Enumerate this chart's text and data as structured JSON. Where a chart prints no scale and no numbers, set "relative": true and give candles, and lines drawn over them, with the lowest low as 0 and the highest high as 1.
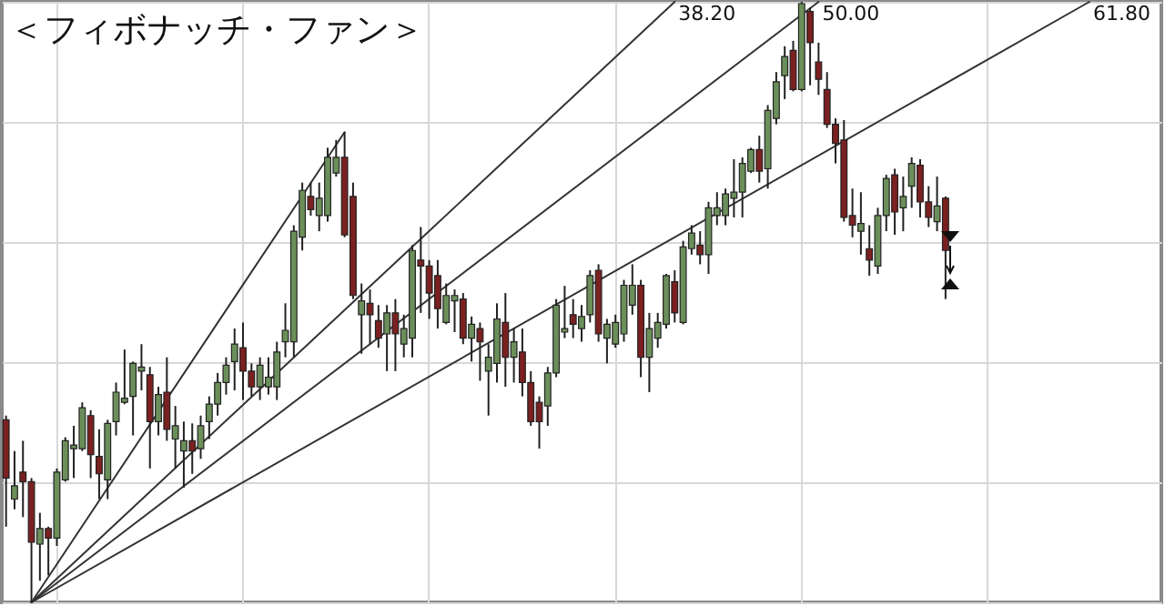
{
  "chart_data": {
    "type": "candlestick",
    "title": "＜フィボナッチ・ファン＞",
    "relative": true,
    "grid": true,
    "categories": [
      null,
      null,
      null,
      null,
      null,
      null,
      null,
      null,
      null,
      null,
      null,
      null,
      null,
      null,
      null,
      null,
      null,
      null,
      null,
      null,
      null,
      null,
      null,
      null,
      null,
      null,
      null,
      null,
      null,
      null,
      null,
      null,
      null,
      null,
      null,
      null,
      null,
      null,
      null,
      null,
      null,
      null,
      null,
      null,
      null,
      null,
      null,
      null,
      null,
      null,
      null,
      null,
      null,
      null,
      null,
      null,
      null,
      null,
      null,
      null,
      null,
      null,
      null,
      null,
      null,
      null,
      null,
      null,
      null,
      null,
      null,
      null,
      null,
      null,
      null,
      null,
      null,
      null,
      null,
      null,
      null,
      null,
      null,
      null,
      null,
      null,
      null,
      null,
      null,
      null,
      null,
      null,
      null,
      null,
      null,
      null,
      null,
      null,
      null,
      null,
      null,
      null,
      null,
      null,
      null,
      null,
      null,
      null,
      null,
      null,
      null,
      null,
      null,
      null,
      null,
      null,
      null,
      null,
      null,
      null,
      null,
      null,
      null,
      null,
      null,
      null,
      null,
      null,
      null,
      null,
      null,
      null,
      null,
      null,
      null,
      null,
      null
    ],
    "ohlc": [
      [
        0.304,
        0.311,
        0.126,
        0.207
      ],
      [
        0.172,
        0.252,
        0.155,
        0.194
      ],
      [
        0.217,
        0.269,
        0.142,
        0.201
      ],
      [
        0.201,
        0.207,
        0,
        0.1
      ],
      [
        0.097,
        0.149,
        0.036,
        0.123
      ],
      [
        0.123,
        0.126,
        0.045,
        0.107
      ],
      [
        0.107,
        0.223,
        0.094,
        0.217
      ],
      [
        0.204,
        0.275,
        0.201,
        0.269
      ],
      [
        0.256,
        0.294,
        0.207,
        0.262
      ],
      [
        0.256,
        0.333,
        0.252,
        0.324
      ],
      [
        0.311,
        0.32,
        0.207,
        0.246
      ],
      [
        0.243,
        0.288,
        0.172,
        0.214
      ],
      [
        0.204,
        0.304,
        0.172,
        0.298
      ],
      [
        0.301,
        0.366,
        0.278,
        0.35
      ],
      [
        0.333,
        0.421,
        0.33,
        0.34
      ],
      [
        0.343,
        0.401,
        0.278,
        0.398
      ],
      [
        0.385,
        0.43,
        0.353,
        0.392
      ],
      [
        0.379,
        0.392,
        0.223,
        0.301
      ],
      [
        0.301,
        0.359,
        0.278,
        0.346
      ],
      [
        0.35,
        0.408,
        0.269,
        0.288
      ],
      [
        0.272,
        0.327,
        0.223,
        0.294
      ],
      [
        0.252,
        0.301,
        0.191,
        0.269
      ],
      [
        0.269,
        0.298,
        0.214,
        0.252
      ],
      [
        0.256,
        0.311,
        0.239,
        0.294
      ],
      [
        0.301,
        0.343,
        0.272,
        0.33
      ],
      [
        0.33,
        0.382,
        0.311,
        0.366
      ],
      [
        0.366,
        0.408,
        0.346,
        0.395
      ],
      [
        0.401,
        0.456,
        0.353,
        0.43
      ],
      [
        0.424,
        0.466,
        0.337,
        0.385
      ],
      [
        0.385,
        0.398,
        0.343,
        0.359
      ],
      [
        0.359,
        0.408,
        0.337,
        0.395
      ],
      [
        0.359,
        0.408,
        0.346,
        0.375
      ],
      [
        0.359,
        0.434,
        0.337,
        0.417
      ],
      [
        0.434,
        0.498,
        0.408,
        0.453
      ],
      [
        0.434,
        0.628,
        0.408,
        0.618
      ],
      [
        0.608,
        0.699,
        0.586,
        0.686
      ],
      [
        0.676,
        0.699,
        0.644,
        0.654
      ],
      [
        0.644,
        0.699,
        0.618,
        0.673
      ],
      [
        0.644,
        0.757,
        0.634,
        0.741
      ],
      [
        0.715,
        0.77,
        0.709,
        0.741
      ],
      [
        0.741,
        0.783,
        0.608,
        0.612
      ],
      [
        0.676,
        0.699,
        0.505,
        0.511
      ],
      [
        0.479,
        0.531,
        0.414,
        0.502
      ],
      [
        0.498,
        0.521,
        0.43,
        0.479
      ],
      [
        0.469,
        0.495,
        0.424,
        0.44
      ],
      [
        0.447,
        0.495,
        0.385,
        0.482
      ],
      [
        0.482,
        0.505,
        0.385,
        0.447
      ],
      [
        0.43,
        0.479,
        0.408,
        0.456
      ],
      [
        0.44,
        0.595,
        0.408,
        0.586
      ],
      [
        0.57,
        0.625,
        0.482,
        0.56
      ],
      [
        0.56,
        0.57,
        0.472,
        0.515
      ],
      [
        0.544,
        0.57,
        0.456,
        0.489
      ],
      [
        0.466,
        0.531,
        0.463,
        0.511
      ],
      [
        0.502,
        0.521,
        0.45,
        0.511
      ],
      [
        0.505,
        0.515,
        0.43,
        0.44
      ],
      [
        0.44,
        0.476,
        0.401,
        0.463
      ],
      [
        0.456,
        0.466,
        0.369,
        0.434
      ],
      [
        0.385,
        0.43,
        0.311,
        0.408
      ],
      [
        0.398,
        0.498,
        0.366,
        0.472
      ],
      [
        0.466,
        0.515,
        0.359,
        0.408
      ],
      [
        0.408,
        0.456,
        0.366,
        0.434
      ],
      [
        0.417,
        0.456,
        0.343,
        0.366
      ],
      [
        0.366,
        0.385,
        0.294,
        0.301
      ],
      [
        0.333,
        0.343,
        0.256,
        0.301
      ],
      [
        0.327,
        0.392,
        0.294,
        0.382
      ],
      [
        0.382,
        0.505,
        0.375,
        0.495
      ],
      [
        0.45,
        0.527,
        0.44,
        0.456
      ],
      [
        0.479,
        0.505,
        0.44,
        0.463
      ],
      [
        0.456,
        0.495,
        0.434,
        0.476
      ],
      [
        0.479,
        0.553,
        0.466,
        0.544
      ],
      [
        0.553,
        0.563,
        0.434,
        0.447
      ],
      [
        0.44,
        0.472,
        0.398,
        0.463
      ],
      [
        0.43,
        0.479,
        0.424,
        0.466
      ],
      [
        0.447,
        0.537,
        0.434,
        0.528
      ],
      [
        0.495,
        0.563,
        0.479,
        0.528
      ],
      [
        0.528,
        0.537,
        0.375,
        0.408
      ],
      [
        0.408,
        0.482,
        0.35,
        0.456
      ],
      [
        0.44,
        0.482,
        0.424,
        0.466
      ],
      [
        0.463,
        0.547,
        0.456,
        0.544
      ],
      [
        0.534,
        0.553,
        0.466,
        0.482
      ],
      [
        0.466,
        0.602,
        0.463,
        0.592
      ],
      [
        0.589,
        0.628,
        0.579,
        0.615
      ],
      [
        0.595,
        0.618,
        0.563,
        0.579
      ],
      [
        0.579,
        0.667,
        0.547,
        0.657
      ],
      [
        0.644,
        0.683,
        0.628,
        0.657
      ],
      [
        0.644,
        0.689,
        0.628,
        0.68
      ],
      [
        0.673,
        0.738,
        0.641,
        0.683
      ],
      [
        0.683,
        0.741,
        0.641,
        0.731
      ],
      [
        0.718,
        0.757,
        0.715,
        0.754
      ],
      [
        0.754,
        0.777,
        0.699,
        0.718
      ],
      [
        0.722,
        0.828,
        0.689,
        0.819
      ],
      [
        0.806,
        0.883,
        0.796,
        0.867
      ],
      [
        0.877,
        0.926,
        0.838,
        0.909
      ],
      [
        0.919,
        0.935,
        0.851,
        0.854
      ],
      [
        0.854,
        1,
        0.851,
        0.997
      ],
      [
        0.984,
        0.99,
        0.861,
        0.932
      ],
      [
        0.9,
        0.932,
        0.845,
        0.871
      ],
      [
        0.854,
        0.883,
        0.79,
        0.796
      ],
      [
        0.796,
        0.806,
        0.731,
        0.764
      ],
      [
        0.77,
        0.803,
        0.634,
        0.641
      ],
      [
        0.644,
        0.689,
        0.608,
        0.628
      ],
      [
        0.618,
        0.683,
        0.579,
        0.631
      ],
      [
        0.589,
        0.628,
        0.544,
        0.57
      ],
      [
        0.56,
        0.657,
        0.547,
        0.644
      ],
      [
        0.644,
        0.712,
        0.618,
        0.706
      ],
      [
        0.712,
        0.722,
        0.612,
        0.65
      ],
      [
        0.657,
        0.709,
        0.618,
        0.676
      ],
      [
        0.693,
        0.741,
        0.657,
        0.731
      ],
      [
        0.728,
        0.738,
        0.641,
        0.667
      ],
      [
        0.667,
        0.693,
        0.625,
        0.641
      ],
      [
        0.634,
        0.709,
        0.618,
        0.66
      ],
      [
        0.673,
        0.676,
        0.505,
        0.586
      ],
      null,
      null,
      null,
      null,
      null,
      null,
      null,
      null,
      null,
      null,
      null,
      null,
      null,
      null,
      null,
      null,
      null,
      null,
      null,
      null,
      null,
      null,
      null,
      null,
      null
    ],
    "colors": [
      "#7b2020",
      "#6b8f5a",
      "#7b2020",
      "#7b2020",
      "#6b8f5a",
      "#7b2020",
      "#6b8f5a",
      "#6b8f5a",
      "#6b8f5a",
      "#6b8f5a",
      "#7b2020",
      "#7b2020",
      "#6b8f5a",
      "#6b8f5a",
      "#6b8f5a",
      "#6b8f5a",
      "#6b8f5a",
      "#7b2020",
      "#6b8f5a",
      "#7b2020",
      "#6b8f5a",
      "#6b8f5a",
      "#7b2020",
      "#6b8f5a",
      "#6b8f5a",
      "#6b8f5a",
      "#6b8f5a",
      "#6b8f5a",
      "#7b2020",
      "#7b2020",
      "#6b8f5a",
      "#6b8f5a",
      "#6b8f5a",
      "#6b8f5a",
      "#6b8f5a",
      "#6b8f5a",
      "#7b2020",
      "#6b8f5a",
      "#6b8f5a",
      "#6b8f5a",
      "#7b2020",
      "#7b2020",
      "#6b8f5a",
      "#7b2020",
      "#7b2020",
      "#6b8f5a",
      "#7b2020",
      "#6b8f5a",
      "#6b8f5a",
      "#7b2020",
      "#7b2020",
      "#7b2020",
      "#6b8f5a",
      "#6b8f5a",
      "#7b2020",
      "#6b8f5a",
      "#7b2020",
      "#6b8f5a",
      "#6b8f5a",
      "#7b2020",
      "#6b8f5a",
      "#7b2020",
      "#7b2020",
      "#7b2020",
      "#6b8f5a",
      "#6b8f5a",
      "#6b8f5a",
      "#7b2020",
      "#6b8f5a",
      "#6b8f5a",
      "#7b2020",
      "#6b8f5a",
      "#6b8f5a",
      "#6b8f5a",
      "#6b8f5a",
      "#7b2020",
      "#6b8f5a",
      "#6b8f5a",
      "#6b8f5a",
      "#7b2020",
      "#6b8f5a",
      "#6b8f5a",
      "#7b2020",
      "#6b8f5a",
      "#6b8f5a",
      "#6b8f5a",
      "#6b8f5a",
      "#6b8f5a",
      "#6b8f5a",
      "#7b2020",
      "#6b8f5a",
      "#6b8f5a",
      "#6b8f5a",
      "#7b2020",
      "#6b8f5a",
      "#7b2020",
      "#7b2020",
      "#7b2020",
      "#7b2020",
      "#7b2020",
      "#7b2020",
      "#6b8f5a",
      "#7b2020",
      "#6b8f5a",
      "#6b8f5a",
      "#7b2020",
      "#6b8f5a",
      "#6b8f5a",
      "#7b2020",
      "#7b2020",
      "#6b8f5a",
      "#7b2020",
      null,
      null,
      null,
      null,
      null,
      null,
      null,
      null,
      null,
      null,
      null,
      null,
      null,
      null,
      null,
      null,
      null,
      null,
      null,
      null,
      null,
      null,
      null,
      null,
      null
    ],
    "series": [
      {
        "type": "line",
        "color": "#333333",
        "values": [
          null,
          null,
          null,
          0,
          null,
          null,
          null,
          null,
          null,
          null,
          null,
          null,
          null,
          null,
          null,
          null,
          null,
          null,
          null,
          null,
          null,
          null,
          null,
          null,
          null,
          null,
          null,
          null,
          null,
          null,
          null,
          null,
          null,
          null,
          null,
          null,
          null,
          null,
          null,
          null,
          0.783,
          null,
          null,
          null,
          null,
          null,
          null,
          null,
          null,
          null,
          null,
          null,
          null,
          null,
          null,
          null,
          null,
          null,
          null,
          null,
          null,
          null,
          null,
          null,
          null,
          null,
          null,
          null,
          null,
          null,
          null,
          null,
          null,
          null,
          null,
          null,
          null,
          null,
          null,
          null,
          null,
          null,
          null,
          null,
          null,
          null,
          null,
          null,
          null,
          null,
          null,
          null,
          null,
          null,
          null,
          null,
          null,
          null,
          null,
          null,
          null,
          null,
          null,
          null,
          null,
          null,
          null,
          null,
          null,
          null,
          null,
          null,
          null,
          null,
          null,
          null,
          null,
          null,
          null,
          null,
          null,
          null,
          null,
          null,
          null,
          null,
          null,
          null,
          null,
          null,
          null,
          null,
          null,
          null,
          null,
          null,
          null
        ]
      },
      {
        "type": "line",
        "name": "38.20",
        "color": "#333333",
        "values": [
          null,
          null,
          null,
          0,
          null,
          null,
          null,
          null,
          null,
          null,
          null,
          null,
          null,
          null,
          null,
          null,
          null,
          null,
          null,
          null,
          null,
          null,
          null,
          null,
          null,
          null,
          null,
          null,
          null,
          null,
          null,
          null,
          null,
          null,
          null,
          null,
          null,
          null,
          null,
          null,
          null,
          null,
          null,
          null,
          null,
          null,
          null,
          null,
          null,
          null,
          null,
          null,
          null,
          null,
          null,
          null,
          null,
          null,
          null,
          null,
          null,
          null,
          null,
          null,
          null,
          null,
          null,
          null,
          null,
          null,
          null,
          null,
          null,
          null,
          null,
          null,
          null,
          null,
          null,
          1,
          null,
          null,
          null,
          null,
          null,
          null,
          null,
          null,
          null,
          null,
          null,
          null,
          null,
          null,
          null,
          null,
          null,
          null,
          null,
          null,
          null,
          null,
          null,
          null,
          null,
          null,
          null,
          null,
          null,
          null,
          null,
          null,
          null,
          null,
          null,
          null,
          null,
          null,
          null,
          null,
          null,
          null,
          null,
          null,
          null,
          null,
          null,
          null,
          null,
          null,
          null,
          null,
          null,
          null,
          null,
          null,
          null
        ]
      },
      {
        "type": "line",
        "name": "50.00",
        "color": "#333333",
        "values": [
          null,
          null,
          null,
          0,
          null,
          null,
          null,
          null,
          null,
          null,
          null,
          null,
          null,
          null,
          null,
          null,
          null,
          null,
          null,
          null,
          null,
          null,
          null,
          null,
          null,
          null,
          null,
          null,
          null,
          null,
          null,
          null,
          null,
          null,
          null,
          null,
          null,
          null,
          null,
          null,
          null,
          null,
          null,
          null,
          null,
          null,
          null,
          null,
          null,
          null,
          null,
          null,
          null,
          null,
          null,
          null,
          null,
          null,
          null,
          null,
          null,
          null,
          null,
          null,
          null,
          null,
          null,
          null,
          null,
          null,
          null,
          null,
          null,
          null,
          null,
          null,
          null,
          null,
          null,
          null,
          null,
          null,
          null,
          null,
          null,
          null,
          null,
          null,
          null,
          null,
          null,
          null,
          null,
          null,
          null,
          null,
          1,
          null,
          null,
          null,
          null,
          null,
          null,
          null,
          null,
          null,
          null,
          null,
          null,
          null,
          null,
          null,
          null,
          null,
          null,
          null,
          null,
          null,
          null,
          null,
          null,
          null,
          null,
          null,
          null,
          null,
          null,
          null,
          null,
          null,
          null,
          null,
          null,
          null,
          null,
          null,
          null
        ]
      },
      {
        "type": "line",
        "name": "61.80",
        "color": "#333333",
        "values": [
          null,
          null,
          null,
          0,
          null,
          null,
          null,
          null,
          null,
          null,
          null,
          null,
          null,
          null,
          null,
          null,
          null,
          null,
          null,
          null,
          null,
          null,
          null,
          null,
          null,
          null,
          null,
          null,
          null,
          null,
          null,
          null,
          null,
          null,
          null,
          null,
          null,
          null,
          null,
          null,
          null,
          null,
          null,
          null,
          null,
          null,
          null,
          null,
          null,
          null,
          null,
          null,
          null,
          null,
          null,
          null,
          null,
          null,
          null,
          null,
          null,
          null,
          null,
          null,
          null,
          null,
          null,
          null,
          null,
          null,
          null,
          null,
          null,
          null,
          null,
          null,
          null,
          null,
          null,
          null,
          null,
          null,
          null,
          null,
          null,
          null,
          null,
          null,
          null,
          null,
          null,
          null,
          null,
          null,
          null,
          null,
          null,
          null,
          null,
          null,
          null,
          null,
          null,
          null,
          null,
          null,
          null,
          null,
          null,
          null,
          null,
          null,
          null,
          null,
          null,
          null,
          null,
          null,
          null,
          null,
          null,
          null,
          null,
          null,
          null,
          null,
          null,
          null,
          1,
          null,
          null,
          null,
          null,
          null,
          null,
          null,
          null
        ]
      }
    ]
  }
}
